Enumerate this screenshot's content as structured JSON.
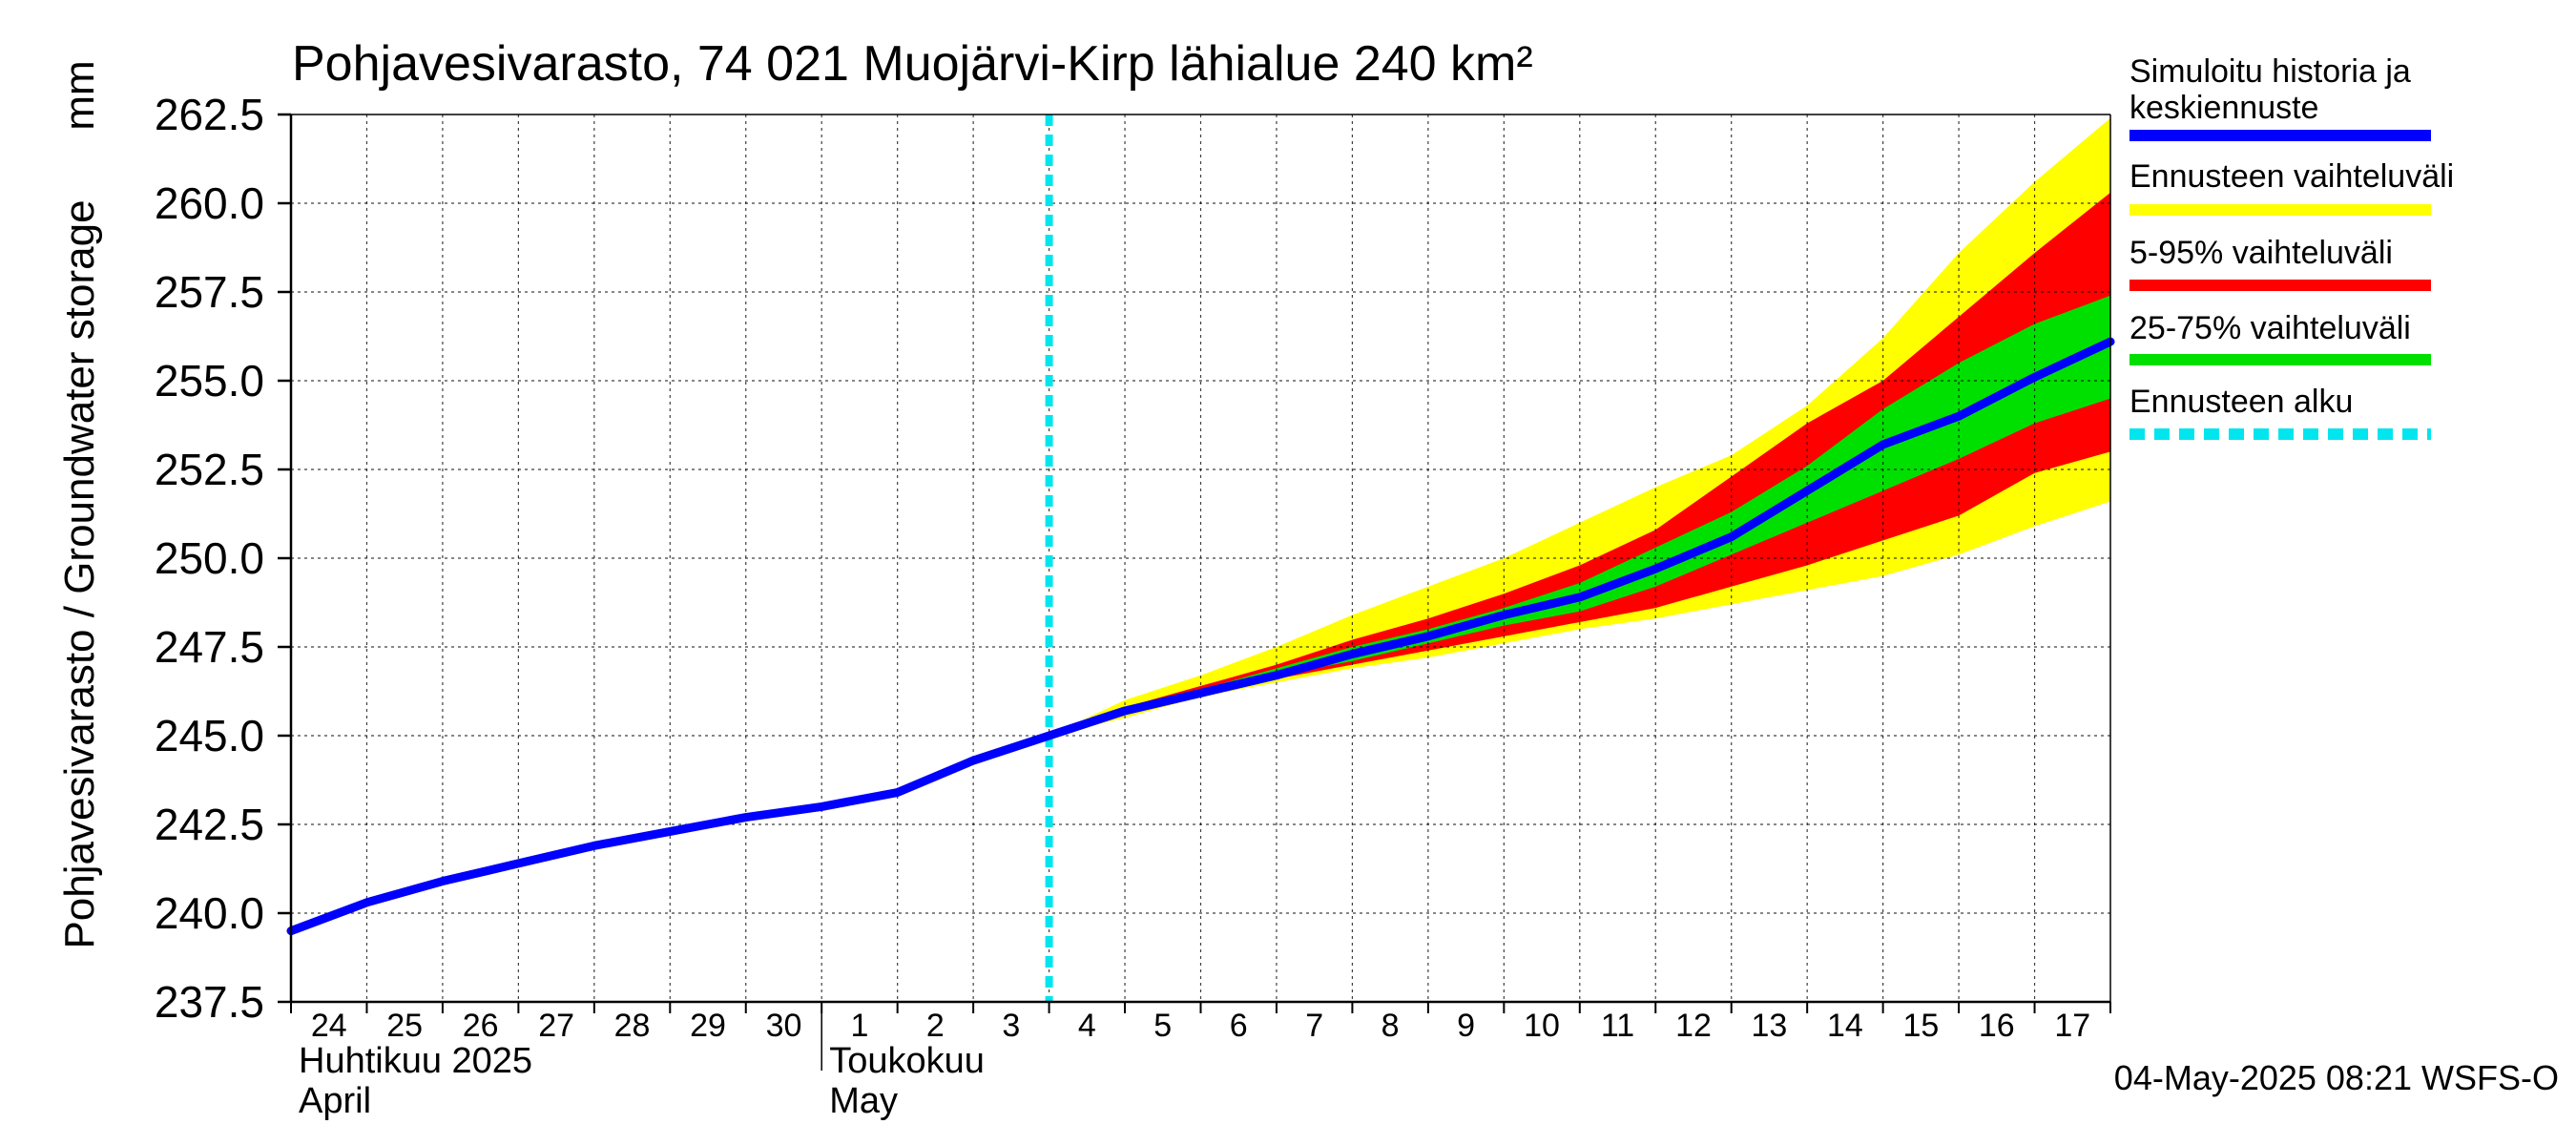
{
  "chart_data": {
    "type": "area",
    "title": "Pohjavesivarasto, 74 021 Muojärvi-Kirp lähialue 240 km²",
    "ylabel": "Pohjavesivarasto / Groundwater storage",
    "yunit": "mm",
    "ylim": [
      237.5,
      262.5
    ],
    "yticks": [
      "237.5",
      "240.0",
      "242.5",
      "245.0",
      "247.5",
      "250.0",
      "252.5",
      "255.0",
      "257.5",
      "260.0",
      "262.5"
    ],
    "x_start": "2025-04-24",
    "x_end": "2025-05-18",
    "grid": true,
    "day_labels": [
      "24",
      "25",
      "26",
      "27",
      "28",
      "29",
      "30",
      "1",
      "2",
      "3",
      "4",
      "5",
      "6",
      "7",
      "8",
      "9",
      "10",
      "11",
      "12",
      "13",
      "14",
      "15",
      "16",
      "17"
    ],
    "month_labels": [
      {
        "fi": "Huhtikuu 2025",
        "en": "April",
        "date": "2025-04-24"
      },
      {
        "fi": "Toukokuu",
        "en": "May",
        "date": "2025-05-01"
      }
    ],
    "forecast_start": "2025-05-04",
    "legend": [
      {
        "label": "Simuloitu historia ja keskiennuste",
        "color": "#0000ff",
        "style": "solid"
      },
      {
        "label": "Ennusteen vaihteluväli",
        "color": "#ffff00",
        "style": "solid"
      },
      {
        "label": "5-95% vaihteluväli",
        "color": "#ff0000",
        "style": "solid"
      },
      {
        "label": "25-75% vaihteluväli",
        "color": "#00e000",
        "style": "solid"
      },
      {
        "label": "Ennusteen alku",
        "color": "#00e5ee",
        "style": "dashed"
      }
    ],
    "history": {
      "x": [
        "2025-04-24",
        "2025-04-25",
        "2025-04-26",
        "2025-04-27",
        "2025-04-28",
        "2025-04-29",
        "2025-04-30",
        "2025-05-01",
        "2025-05-02",
        "2025-05-03",
        "2025-05-04"
      ],
      "y": [
        239.5,
        240.3,
        240.9,
        241.4,
        241.9,
        242.3,
        242.7,
        243.0,
        243.4,
        244.3,
        245.0
      ]
    },
    "forecast": {
      "x": [
        "2025-05-04",
        "2025-05-05",
        "2025-05-06",
        "2025-05-07",
        "2025-05-08",
        "2025-05-09",
        "2025-05-10",
        "2025-05-11",
        "2025-05-12",
        "2025-05-13",
        "2025-05-14",
        "2025-05-15",
        "2025-05-16",
        "2025-05-17",
        "2025-05-18"
      ],
      "median": [
        245.0,
        245.7,
        246.2,
        246.7,
        247.3,
        247.8,
        248.4,
        248.9,
        249.7,
        250.6,
        251.9,
        253.2,
        254.0,
        255.1,
        256.1
      ],
      "p25": [
        245.0,
        245.7,
        246.2,
        246.7,
        247.1,
        247.6,
        248.1,
        248.5,
        249.2,
        250.1,
        251.0,
        251.9,
        252.8,
        253.8,
        254.5
      ],
      "p75": [
        245.0,
        245.7,
        246.3,
        246.9,
        247.5,
        248.0,
        248.6,
        249.3,
        250.3,
        251.3,
        252.6,
        254.2,
        255.5,
        256.6,
        257.4
      ],
      "p5": [
        245.0,
        245.6,
        246.2,
        246.6,
        247.0,
        247.4,
        247.8,
        248.2,
        248.6,
        249.2,
        249.8,
        250.5,
        251.2,
        252.4,
        253.0
      ],
      "p95": [
        245.0,
        245.8,
        246.4,
        247.0,
        247.7,
        248.3,
        249.0,
        249.8,
        250.8,
        252.3,
        253.8,
        255.0,
        256.8,
        258.6,
        260.3
      ],
      "min": [
        245.0,
        245.5,
        246.1,
        246.5,
        246.9,
        247.2,
        247.6,
        248.0,
        248.3,
        248.7,
        249.1,
        249.5,
        250.1,
        250.9,
        251.6
      ],
      "max": [
        245.0,
        246.0,
        246.7,
        247.5,
        248.4,
        249.2,
        250.0,
        251.0,
        252.0,
        252.9,
        254.3,
        256.2,
        258.6,
        260.6,
        262.4
      ]
    }
  },
  "footer": {
    "timestamp": "04-May-2025 08:21 WSFS-O"
  }
}
